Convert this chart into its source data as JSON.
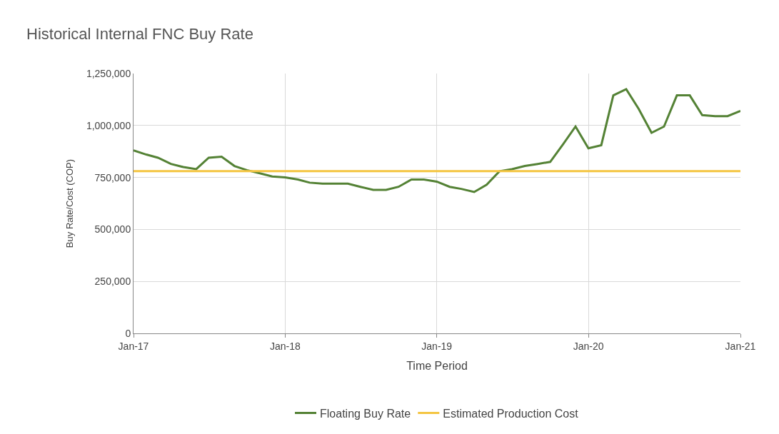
{
  "chart_data": {
    "type": "line",
    "title": "Historical Internal FNC Buy Rate",
    "xlabel": "Time Period",
    "ylabel": "Buy Rate/Cost (COP)",
    "xlim": [
      "2017-01",
      "2021-01"
    ],
    "xticks": [
      {
        "value": "2017-01",
        "label": "Jan-17"
      },
      {
        "value": "2018-01",
        "label": "Jan-18"
      },
      {
        "value": "2019-01",
        "label": "Jan-19"
      },
      {
        "value": "2020-01",
        "label": "Jan-20"
      },
      {
        "value": "2021-01",
        "label": "Jan-21"
      }
    ],
    "ylim": [
      0,
      1250000
    ],
    "yticks": [
      0,
      {
        "value": 250000,
        "label": "250,000"
      },
      {
        "value": 500000,
        "label": "500,000"
      },
      {
        "value": 750000,
        "label": "750,000"
      },
      {
        "value": 1000000,
        "label": "1,000,000"
      },
      {
        "value": 1250000,
        "label": "1,250,000"
      }
    ],
    "grid": true,
    "legend": "bottom",
    "marker": "none",
    "line_style": "solid",
    "series": [
      {
        "name": "Floating Buy Rate",
        "color": "#548235",
        "x": [
          "2017-01",
          "2017-02",
          "2017-03",
          "2017-04",
          "2017-05",
          "2017-06",
          "2017-07",
          "2017-08",
          "2017-09",
          "2017-10",
          "2017-11",
          "2017-12",
          "2018-01",
          "2018-02",
          "2018-03",
          "2018-04",
          "2018-05",
          "2018-06",
          "2018-07",
          "2018-08",
          "2018-09",
          "2018-10",
          "2018-11",
          "2018-12",
          "2019-01",
          "2019-02",
          "2019-03",
          "2019-04",
          "2019-05",
          "2019-06",
          "2019-07",
          "2019-08",
          "2019-09",
          "2019-10",
          "2019-11",
          "2019-12",
          "2020-01",
          "2020-02",
          "2020-03",
          "2020-04",
          "2020-05",
          "2020-06",
          "2020-07",
          "2020-08",
          "2020-09",
          "2020-10",
          "2020-11",
          "2020-12",
          "2021-01"
        ],
        "values": [
          880000,
          860000,
          845000,
          815000,
          800000,
          790000,
          845000,
          850000,
          805000,
          785000,
          770000,
          755000,
          750000,
          740000,
          725000,
          720000,
          720000,
          720000,
          705000,
          690000,
          690000,
          705000,
          740000,
          740000,
          730000,
          705000,
          695000,
          680000,
          715000,
          780000,
          790000,
          805000,
          815000,
          825000,
          910000,
          995000,
          890000,
          905000,
          1145000,
          1175000,
          1080000,
          965000,
          995000,
          1145000,
          1145000,
          1050000,
          1045000,
          1045000,
          1070000
        ]
      },
      {
        "name": "Estimated Production Cost",
        "color": "#f4c542",
        "x": [
          "2017-01",
          "2021-01"
        ],
        "values": [
          780000,
          780000
        ]
      }
    ]
  }
}
